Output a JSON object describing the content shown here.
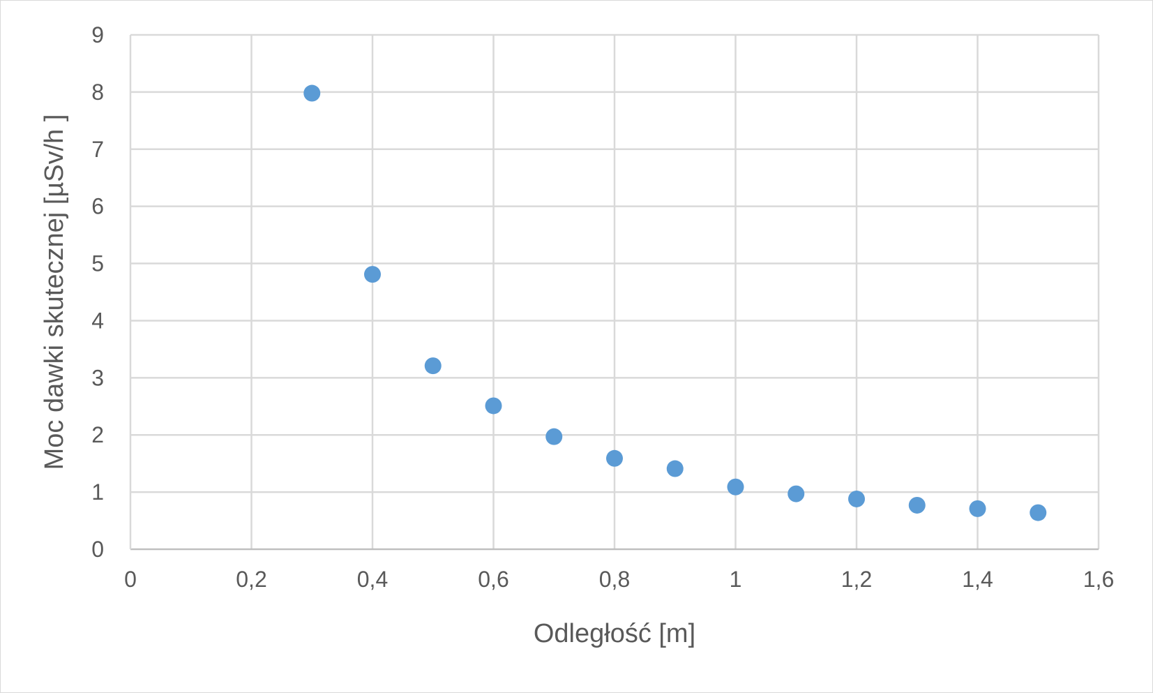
{
  "chart_data": {
    "type": "scatter",
    "title": "",
    "xlabel": "Odległość [m]",
    "ylabel": "Moc dawki skutecznej [µSv/h ]",
    "xlim": [
      0,
      1.6
    ],
    "ylim": [
      0,
      9
    ],
    "x_ticks": [
      "0",
      "0,2",
      "0,4",
      "0,6",
      "0,8",
      "1",
      "1,2",
      "1,4",
      "1,6"
    ],
    "y_ticks": [
      "0",
      "1",
      "2",
      "3",
      "4",
      "5",
      "6",
      "7",
      "8",
      "9"
    ],
    "grid": true,
    "legend": "none",
    "marker_color": "#5b9bd5",
    "series": [
      {
        "x": [
          0.3,
          0.4,
          0.5,
          0.6,
          0.7,
          0.8,
          0.9,
          1.0,
          1.1,
          1.2,
          1.3,
          1.4,
          1.5
        ],
        "y": [
          7.98,
          4.81,
          3.21,
          2.51,
          1.97,
          1.59,
          1.41,
          1.09,
          0.97,
          0.88,
          0.77,
          0.71,
          0.64
        ]
      }
    ]
  }
}
